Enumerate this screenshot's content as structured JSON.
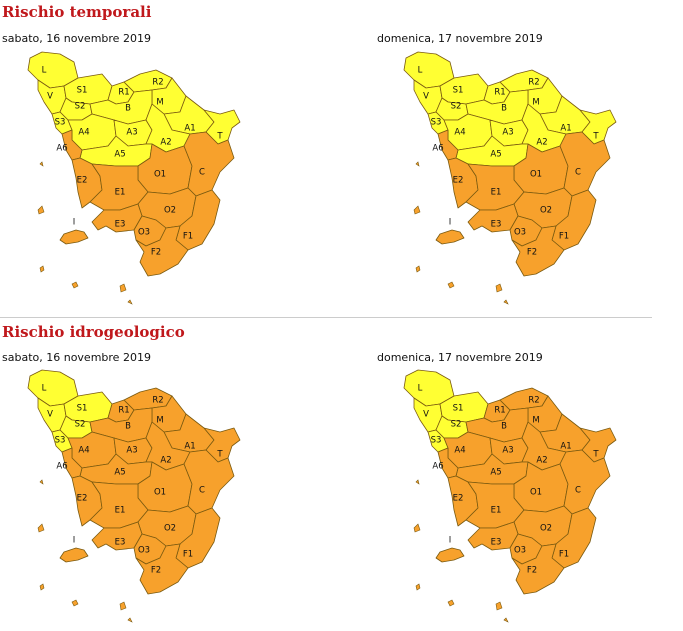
{
  "colors": {
    "yellow": "#ffff33",
    "orange": "#f7a12c",
    "stroke": "#7a5a10"
  },
  "sections": [
    {
      "title": "Rischio temporali",
      "maps": [
        {
          "date": "sabato, 16 novembre 2019",
          "orange_zones": [
            "A6",
            "E2",
            "E1",
            "E3",
            "O1",
            "O2",
            "O3",
            "C",
            "F1",
            "F2",
            "I"
          ]
        },
        {
          "date": "domenica, 17 novembre 2019",
          "orange_zones": [
            "A6",
            "E2",
            "E1",
            "E3",
            "O1",
            "O2",
            "O3",
            "C",
            "F1",
            "F2",
            "I"
          ]
        }
      ]
    },
    {
      "title": "Rischio idrogeologico",
      "maps": [
        {
          "date": "sabato, 16 novembre 2019",
          "orange_zones": [
            "R1",
            "R2",
            "B",
            "M",
            "A1",
            "A2",
            "A3",
            "A4",
            "A5",
            "A6",
            "T",
            "C",
            "O1",
            "O2",
            "O3",
            "E1",
            "E2",
            "E3",
            "F1",
            "F2",
            "I"
          ]
        },
        {
          "date": "domenica, 17 novembre 2019",
          "orange_zones": [
            "R1",
            "R2",
            "B",
            "M",
            "A1",
            "A2",
            "A3",
            "A4",
            "A5",
            "A6",
            "T",
            "C",
            "O1",
            "O2",
            "O3",
            "E1",
            "E2",
            "E3",
            "F1",
            "F2",
            "I"
          ]
        }
      ]
    }
  ],
  "zone_labels": [
    "L",
    "V",
    "S1",
    "S2",
    "S3",
    "R1",
    "R2",
    "M",
    "B",
    "A1",
    "A2",
    "A3",
    "A4",
    "A5",
    "A6",
    "T",
    "C",
    "O1",
    "O2",
    "O3",
    "E1",
    "E2",
    "E3",
    "F1",
    "F2",
    "I"
  ]
}
